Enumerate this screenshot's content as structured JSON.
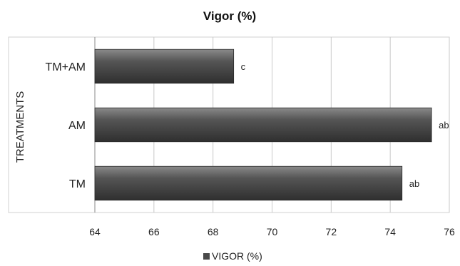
{
  "chart_data": {
    "type": "bar",
    "orientation": "horizontal",
    "title": "Vigor (%)",
    "ylabel": "TREATMENTS",
    "xlabel": "",
    "categories": [
      "TM+AM",
      "AM",
      "TM"
    ],
    "series": [
      {
        "name": "VIGOR (%)",
        "values": [
          68.7,
          75.4,
          74.4
        ],
        "color": "#4a4a4a"
      }
    ],
    "data_labels": [
      "c",
      "ab",
      "ab"
    ],
    "xlim": [
      64,
      76
    ],
    "xticks": [
      "64",
      "66",
      "68",
      "70",
      "72",
      "74",
      "76"
    ],
    "grid": "vertical",
    "legend": "bottom"
  }
}
